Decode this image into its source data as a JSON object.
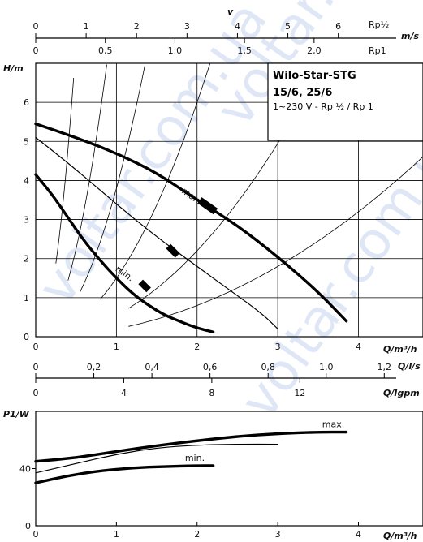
{
  "product": {
    "title": "Wilo-Star-STG",
    "sizes": "15/6, 25/6",
    "spec": "1~230 V - Rp ½ / Rp 1"
  },
  "watermark": "voltar.com.ua",
  "scales": {
    "velocity": {
      "title": "v",
      "unit": "m/s",
      "rp_half": {
        "label": "Rp½",
        "ticks": [
          "0",
          "1",
          "2",
          "3",
          "4",
          "5",
          "6"
        ],
        "values": [
          0,
          1,
          2,
          3,
          4,
          5,
          6
        ]
      },
      "rp_one": {
        "label": "Rp1",
        "ticks": [
          "0",
          "0,5",
          "1,0",
          "1,5",
          "2,0"
        ],
        "values": [
          0,
          0.5,
          1.0,
          1.5,
          2.0
        ]
      }
    },
    "flow_ls": {
      "label": "Q/l/s",
      "ticks": [
        "0",
        "0,2",
        "0,4",
        "0,6",
        "0,8",
        "1,0",
        "1,2"
      ],
      "values": [
        0,
        0.2,
        0.4,
        0.6,
        0.8,
        1.0,
        1.2
      ]
    },
    "flow_igpm": {
      "label": "Q/Igpm",
      "ticks": [
        "0",
        "4",
        "8",
        "12"
      ],
      "values": [
        0,
        4,
        8,
        12
      ]
    }
  },
  "chart_data": [
    {
      "type": "line",
      "title": "",
      "xlabel": "Q/m³/h",
      "ylabel": "H/m",
      "xlim": [
        0,
        4.8
      ],
      "ylim": [
        0,
        7
      ],
      "x_ticks": [
        "0",
        "1",
        "2",
        "3",
        "4"
      ],
      "y_ticks": [
        "0",
        "1",
        "2",
        "3",
        "4",
        "5",
        "6"
      ],
      "grid": true,
      "series": [
        {
          "name": "max.",
          "weight": "bold",
          "x": [
            0,
            0.5,
            1.0,
            1.5,
            2.0,
            2.5,
            3.0,
            3.5,
            3.85
          ],
          "y": [
            5.45,
            5.1,
            4.7,
            4.2,
            3.5,
            2.85,
            2.05,
            1.15,
            0.4
          ]
        },
        {
          "name": "",
          "weight": "thin",
          "x": [
            0,
            0.4,
            0.8,
            1.2,
            1.6,
            2.0,
            2.4,
            2.8,
            3.0
          ],
          "y": [
            5.1,
            4.45,
            3.75,
            3.05,
            2.4,
            1.8,
            1.2,
            0.6,
            0.2
          ]
        },
        {
          "name": "min.",
          "weight": "bold",
          "x": [
            0,
            0.2,
            0.4,
            0.6,
            0.8,
            1.0,
            1.2,
            1.4,
            1.6,
            1.8,
            2.0,
            2.2
          ],
          "y": [
            4.15,
            3.65,
            3.05,
            2.45,
            1.95,
            1.5,
            1.1,
            0.8,
            0.55,
            0.38,
            0.22,
            0.12
          ]
        }
      ],
      "annotations": [
        {
          "text": "max.",
          "x": 1.8,
          "y": 3.7
        },
        {
          "text": "min.",
          "x": 0.98,
          "y": 1.7
        }
      ]
    },
    {
      "type": "line",
      "title": "",
      "xlabel": "Q/m³/h",
      "ylabel": "P1/W",
      "xlim": [
        0,
        4.8
      ],
      "ylim": [
        0,
        80
      ],
      "x_ticks": [
        "0",
        "1",
        "2",
        "3",
        "4"
      ],
      "y_ticks": [
        "0",
        "40"
      ],
      "grid": false,
      "series": [
        {
          "name": "max.",
          "weight": "bold",
          "x": [
            0,
            0.5,
            1.0,
            1.5,
            2.0,
            2.5,
            3.0,
            3.5,
            3.85
          ],
          "y": [
            45,
            47.5,
            52,
            56,
            59.5,
            62.5,
            64.5,
            65.5,
            65.5
          ]
        },
        {
          "name": "",
          "weight": "thin",
          "x": [
            0,
            0.5,
            1.0,
            1.5,
            2.0,
            2.5,
            3.0
          ],
          "y": [
            37,
            43.5,
            50,
            54.5,
            56.5,
            57,
            57
          ]
        },
        {
          "name": "min.",
          "weight": "bold",
          "x": [
            0,
            0.4,
            0.8,
            1.2,
            1.6,
            2.0,
            2.2
          ],
          "y": [
            30,
            35,
            38.5,
            40.5,
            41.5,
            42,
            42
          ]
        }
      ]
    }
  ]
}
